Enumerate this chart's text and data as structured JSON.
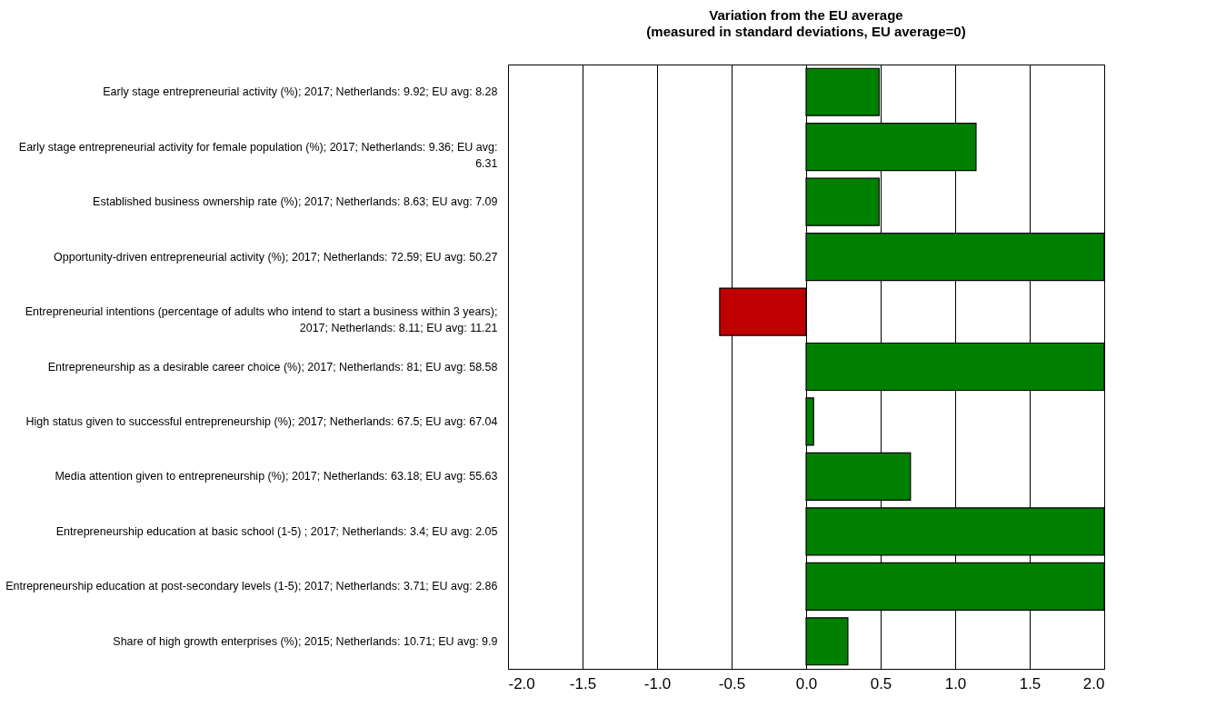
{
  "chart_data": {
    "type": "bar",
    "orientation": "horizontal",
    "title": "Variation from the EU average",
    "subtitle": "(measured in standard deviations, EU average=0)",
    "categories": [
      "Early stage entrepreneurial activity (%); 2017; Netherlands: 9.92; EU avg: 8.28",
      "Early stage entrepreneurial activity for female population (%); 2017; Netherlands: 9.36; EU avg: 6.31",
      "Established business ownership rate (%); 2017; Netherlands: 8.63; EU avg: 7.09",
      "Opportunity-driven entrepreneurial activity (%); 2017; Netherlands: 72.59; EU avg: 50.27",
      "Entrepreneurial intentions (percentage of adults who intend to start a business within 3 years); 2017; Netherlands: 8.11; EU avg: 11.21",
      "Entrepreneurship as a desirable career choice (%); 2017; Netherlands: 81; EU avg: 58.58",
      "High status given to successful entrepreneurship (%); 2017; Netherlands: 67.5; EU avg: 67.04",
      "Media attention given to entrepreneurship (%); 2017; Netherlands: 63.18; EU avg: 55.63",
      "Entrepreneurship education at basic school (1-5) ; 2017; Netherlands: 3.4; EU avg: 2.05",
      "Entrepreneurship education at post-secondary levels (1-5); 2017; Netherlands: 3.71; EU avg: 2.86",
      "Share of high growth enterprises (%); 2015; Netherlands: 10.71; EU avg: 9.9"
    ],
    "values": [
      0.49,
      1.14,
      0.49,
      2.0,
      -0.58,
      2.0,
      0.05,
      0.7,
      2.0,
      2.0,
      0.28
    ],
    "colors": [
      "#008000",
      "#008000",
      "#008000",
      "#008000",
      "#c00000",
      "#008000",
      "#008000",
      "#008000",
      "#008000",
      "#008000",
      "#008000"
    ],
    "xlim": [
      -2,
      2
    ],
    "xticks": [
      {
        "value": -2,
        "label": "-2.0"
      },
      {
        "value": -1.5,
        "label": "-1.5"
      },
      {
        "value": -1,
        "label": "-1.0"
      },
      {
        "value": -0.5,
        "label": "-0.5"
      },
      {
        "value": 0,
        "label": "0.0"
      },
      {
        "value": 0.5,
        "label": "0.5"
      },
      {
        "value": 1,
        "label": "1.0"
      },
      {
        "value": 1.5,
        "label": "1.5"
      },
      {
        "value": 2,
        "label": "2.0"
      }
    ],
    "grid": "x"
  }
}
